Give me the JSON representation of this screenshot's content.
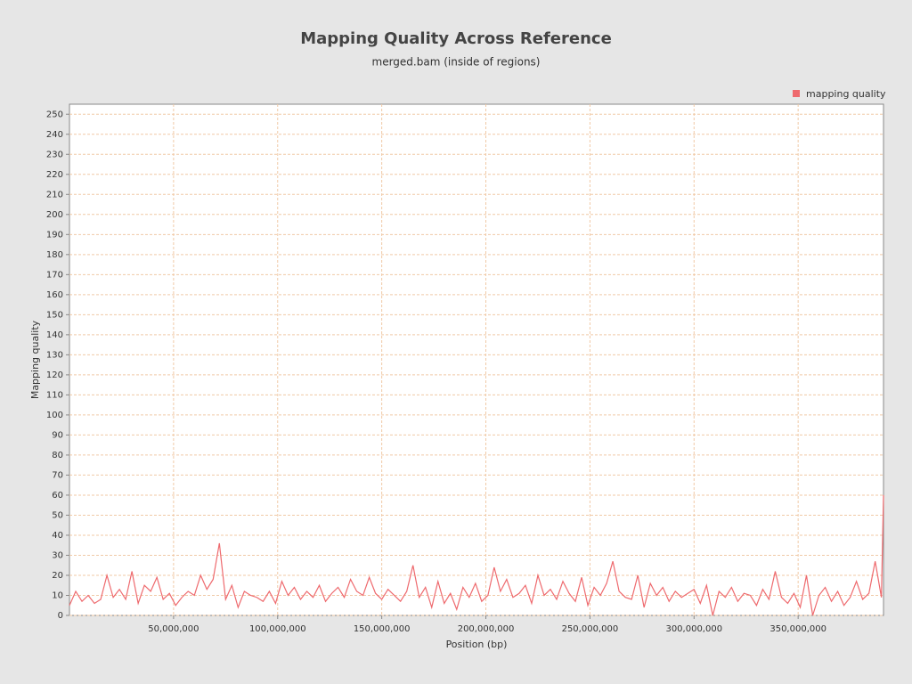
{
  "chart_data": {
    "type": "line",
    "title": "Mapping Quality Across Reference",
    "subtitle": "merged.bam (inside of regions)",
    "x_label": "Position (bp)",
    "y_label": "Mapping quality",
    "x": [
      0,
      3000000,
      6000000,
      9000000,
      12000000,
      15000000,
      18000000,
      21000000,
      24000000,
      27000000,
      30000000,
      33000000,
      36000000,
      39000000,
      42000000,
      45000000,
      48000000,
      51000000,
      54000000,
      57000000,
      60000000,
      63000000,
      66000000,
      69000000,
      72000000,
      75000000,
      78000000,
      81000000,
      84000000,
      87000000,
      90000000,
      93000000,
      96000000,
      99000000,
      102000000,
      105000000,
      108000000,
      111000000,
      114000000,
      117000000,
      120000000,
      123000000,
      126000000,
      129000000,
      132000000,
      135000000,
      138000000,
      141000000,
      144000000,
      147000000,
      150000000,
      153000000,
      156000000,
      159000000,
      162000000,
      165000000,
      168000000,
      171000000,
      174000000,
      177000000,
      180000000,
      183000000,
      186000000,
      189000000,
      192000000,
      195000000,
      198000000,
      201000000,
      204000000,
      207000000,
      210000000,
      213000000,
      216000000,
      219000000,
      222000000,
      225000000,
      228000000,
      231000000,
      234000000,
      237000000,
      240000000,
      243000000,
      246000000,
      249000000,
      252000000,
      255000000,
      258000000,
      261000000,
      264000000,
      267000000,
      270000000,
      273000000,
      276000000,
      279000000,
      282000000,
      285000000,
      288000000,
      291000000,
      294000000,
      297000000,
      300000000,
      303000000,
      306000000,
      309000000,
      312000000,
      315000000,
      318000000,
      321000000,
      324000000,
      327000000,
      330000000,
      333000000,
      336000000,
      339000000,
      342000000,
      345000000,
      348000000,
      351000000,
      354000000,
      357000000,
      360000000,
      363000000,
      366000000,
      369000000,
      372000000,
      375000000,
      378000000,
      381000000,
      384000000,
      387000000,
      390000000,
      391000000
    ],
    "series": [
      {
        "name": "mapping quality",
        "color": "#ee6a6e",
        "values": [
          5,
          12,
          7,
          10,
          6,
          8,
          20,
          9,
          13,
          8,
          22,
          6,
          15,
          12,
          19,
          8,
          11,
          5,
          9,
          12,
          10,
          20,
          13,
          18,
          36,
          8,
          15,
          4,
          12,
          10,
          9,
          7,
          12,
          6,
          17,
          10,
          14,
          8,
          12,
          9,
          15,
          7,
          11,
          14,
          9,
          18,
          12,
          10,
          19,
          11,
          8,
          13,
          10,
          7,
          12,
          25,
          9,
          14,
          4,
          17,
          6,
          11,
          3,
          14,
          9,
          16,
          7,
          10,
          24,
          12,
          18,
          9,
          11,
          15,
          6,
          20,
          10,
          13,
          8,
          17,
          11,
          7,
          19,
          5,
          14,
          10,
          16,
          27,
          12,
          9,
          8,
          20,
          4,
          16,
          10,
          14,
          7,
          12,
          9,
          11,
          13,
          6,
          15,
          0,
          12,
          9,
          14,
          7,
          11,
          10,
          5,
          13,
          8,
          22,
          9,
          6,
          11,
          4,
          20,
          0,
          10,
          14,
          7,
          12,
          5,
          9,
          17,
          8,
          11,
          27,
          9,
          60
        ]
      }
    ],
    "xlim": [
      0,
      391000000
    ],
    "ylim": [
      0,
      255
    ],
    "xticks": [
      {
        "value": 50000000,
        "label": "50,000,000"
      },
      {
        "value": 100000000,
        "label": "100,000,000"
      },
      {
        "value": 150000000,
        "label": "150,000,000"
      },
      {
        "value": 200000000,
        "label": "200,000,000"
      },
      {
        "value": 250000000,
        "label": "250,000,000"
      },
      {
        "value": 300000000,
        "label": "300,000,000"
      },
      {
        "value": 350000000,
        "label": "350,000,000"
      }
    ],
    "yticks": [
      0,
      10,
      20,
      30,
      40,
      50,
      60,
      70,
      80,
      90,
      100,
      110,
      120,
      130,
      140,
      150,
      160,
      170,
      180,
      190,
      200,
      210,
      220,
      230,
      240,
      250
    ],
    "grid": true,
    "legend": "top-right"
  }
}
